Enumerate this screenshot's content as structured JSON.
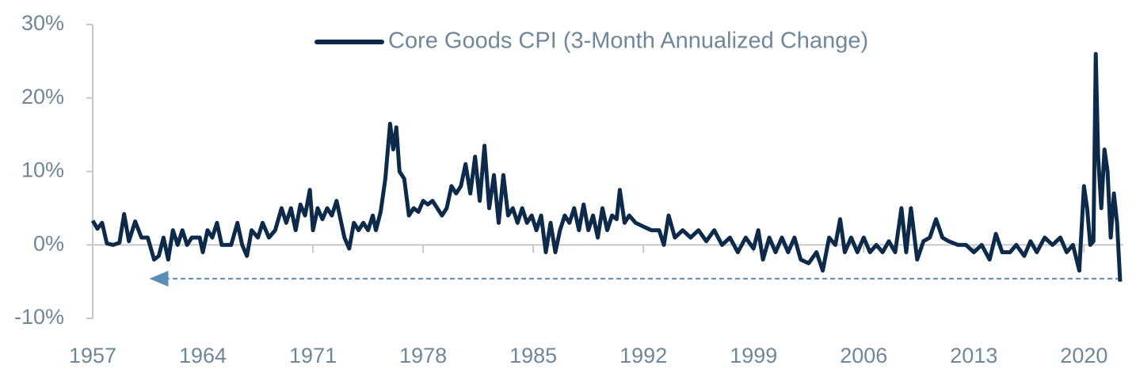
{
  "chart_data": {
    "type": "line",
    "series": [
      {
        "name": "Core Goods CPI (3-Month Annualized Change)",
        "color": "#0d2a4a",
        "x": [
          1957,
          1957.3,
          1957.6,
          1957.9,
          1958.3,
          1958.7,
          1959,
          1959.3,
          1959.7,
          1960.1,
          1960.5,
          1960.9,
          1961.2,
          1961.5,
          1961.8,
          1962.1,
          1962.4,
          1962.7,
          1963,
          1963.3,
          1963.8,
          1964,
          1964.3,
          1964.6,
          1964.9,
          1965.2,
          1965.8,
          1966.2,
          1966.5,
          1966.8,
          1967.1,
          1967.5,
          1967.8,
          1968.2,
          1968.6,
          1969,
          1969.3,
          1969.6,
          1969.9,
          1970.2,
          1970.5,
          1970.8,
          1971,
          1971.3,
          1971.6,
          1971.9,
          1972.2,
          1972.5,
          1972.8,
          1973,
          1973.3,
          1973.6,
          1973.9,
          1974.2,
          1974.5,
          1974.8,
          1975,
          1975.3,
          1975.6,
          1975.9,
          1976.1,
          1976.3,
          1976.5,
          1976.8,
          1977.1,
          1977.4,
          1977.7,
          1978,
          1978.3,
          1978.6,
          1978.9,
          1979.2,
          1979.5,
          1979.8,
          1980.1,
          1980.4,
          1980.7,
          1981,
          1981.3,
          1981.6,
          1981.9,
          1982.2,
          1982.5,
          1982.8,
          1983.1,
          1983.4,
          1983.7,
          1984,
          1984.3,
          1984.6,
          1984.9,
          1985.2,
          1985.5,
          1985.8,
          1986.1,
          1986.4,
          1986.7,
          1987,
          1987.3,
          1987.6,
          1987.9,
          1988.2,
          1988.5,
          1988.8,
          1989.1,
          1989.4,
          1989.7,
          1990,
          1990.3,
          1990.5,
          1990.8,
          1991.1,
          1991.5,
          1992,
          1992.5,
          1993,
          1993.3,
          1993.6,
          1994,
          1994.5,
          1995,
          1995.5,
          1996,
          1996.5,
          1997,
          1997.5,
          1998,
          1998.5,
          1999,
          1999.3,
          1999.6,
          2000,
          2000.4,
          2000.8,
          2001.2,
          2001.6,
          2002,
          2002.5,
          2003,
          2003.4,
          2003.8,
          2004.2,
          2004.5,
          2004.8,
          2005.2,
          2005.6,
          2006,
          2006.4,
          2006.8,
          2007.2,
          2007.6,
          2008,
          2008.4,
          2008.7,
          2009,
          2009.4,
          2009.8,
          2010.2,
          2010.6,
          2011,
          2011.4,
          2012,
          2012.5,
          2013,
          2013.5,
          2014,
          2014.4,
          2014.8,
          2015.3,
          2015.7,
          2016.2,
          2016.6,
          2017,
          2017.5,
          2018,
          2018.5,
          2018.9,
          2019.3,
          2019.7,
          2020,
          2020.2,
          2020.4,
          2020.6,
          2020.75,
          2020.9,
          2021.1,
          2021.3,
          2021.5,
          2021.7,
          2021.9,
          2022.1,
          2022.3
        ],
        "values": [
          3.3,
          2.2,
          3,
          0.2,
          0,
          0.3,
          4.2,
          0.5,
          3.2,
          1,
          1,
          -2,
          -1.5,
          1,
          -2,
          2,
          0,
          2,
          0,
          1,
          1,
          -1,
          2,
          1,
          3,
          0,
          0,
          3,
          0,
          -1.5,
          2,
          1,
          3,
          1,
          2,
          5,
          3,
          5,
          2,
          5.5,
          4,
          7.5,
          2,
          5,
          3.5,
          5,
          4,
          6,
          3,
          1,
          -0.5,
          3,
          2,
          3,
          2,
          4,
          2,
          4.5,
          9,
          16.5,
          13,
          16,
          10,
          9,
          4,
          5,
          4.5,
          6,
          5.5,
          6,
          5,
          4,
          5,
          8,
          7,
          8,
          11,
          7,
          12,
          6,
          13.5,
          5,
          9.5,
          3,
          9.5,
          4,
          5,
          3,
          5,
          3,
          4,
          2,
          4,
          -1,
          3,
          -1,
          2,
          4,
          3,
          5,
          2,
          5.5,
          2,
          4,
          1,
          5,
          2,
          4,
          3.5,
          7.5,
          3,
          4,
          3,
          2.5,
          2,
          2,
          0,
          4,
          1,
          2,
          1,
          2,
          0.5,
          2,
          0,
          1,
          -1,
          1,
          -0.5,
          2,
          -2,
          1,
          -1,
          1,
          -1,
          1,
          -2,
          -2.5,
          -1,
          -3.5,
          1,
          0,
          3.5,
          -1,
          1,
          -1,
          1,
          -1,
          0,
          -1,
          0.5,
          -1,
          5,
          -1,
          5,
          -2,
          0.5,
          1,
          3.5,
          1,
          0.5,
          0,
          0,
          -1,
          0,
          -2,
          1.5,
          -1,
          -1,
          0,
          -1.5,
          0.5,
          -1,
          1,
          0,
          1,
          -1,
          0,
          -3.5,
          8,
          5,
          0,
          0.5,
          26,
          12,
          5,
          13,
          10,
          1,
          7,
          3,
          -5
        ]
      }
    ],
    "xlim": [
      1957,
      2022.5
    ],
    "xticks": [
      1957,
      1964,
      1971,
      1978,
      1985,
      1992,
      1999,
      2006,
      2013,
      2020
    ],
    "ylim": [
      -10,
      30
    ],
    "yticks": [
      {
        "value": 30,
        "label": "30%"
      },
      {
        "value": 20,
        "label": "20%"
      },
      {
        "value": 10,
        "label": "10%"
      },
      {
        "value": 0,
        "label": "0%"
      },
      {
        "value": -10,
        "label": "-10%"
      }
    ],
    "reference_line": {
      "value": -4.6,
      "from_x": 2022.3,
      "to_x": 1960.6,
      "color": "#5b8db8"
    },
    "legend": "upper center"
  }
}
